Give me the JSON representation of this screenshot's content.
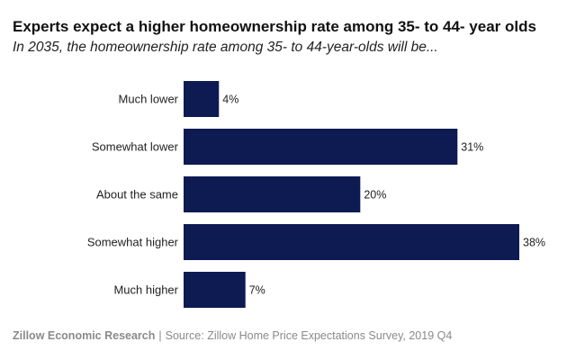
{
  "header": {
    "title": "Experts expect a higher homeownership rate among 35- to 44- year olds",
    "subtitle": "In 2035, the homeownership rate among 35- to 44-year-olds will be..."
  },
  "footer": {
    "brand": "Zillow Economic Research",
    "separator": "|",
    "source": "Source: Zillow Home Price Expectations Survey, 2019 Q4"
  },
  "chart_data": {
    "type": "bar",
    "orientation": "horizontal",
    "categories": [
      "Much lower",
      "Somewhat lower",
      "About the same",
      "Somewhat higher",
      "Much higher"
    ],
    "values": [
      4,
      31,
      20,
      38,
      7
    ],
    "value_suffix": "%",
    "xlim": [
      0,
      38
    ],
    "grid": false,
    "bar_color": "#0e1a52"
  }
}
